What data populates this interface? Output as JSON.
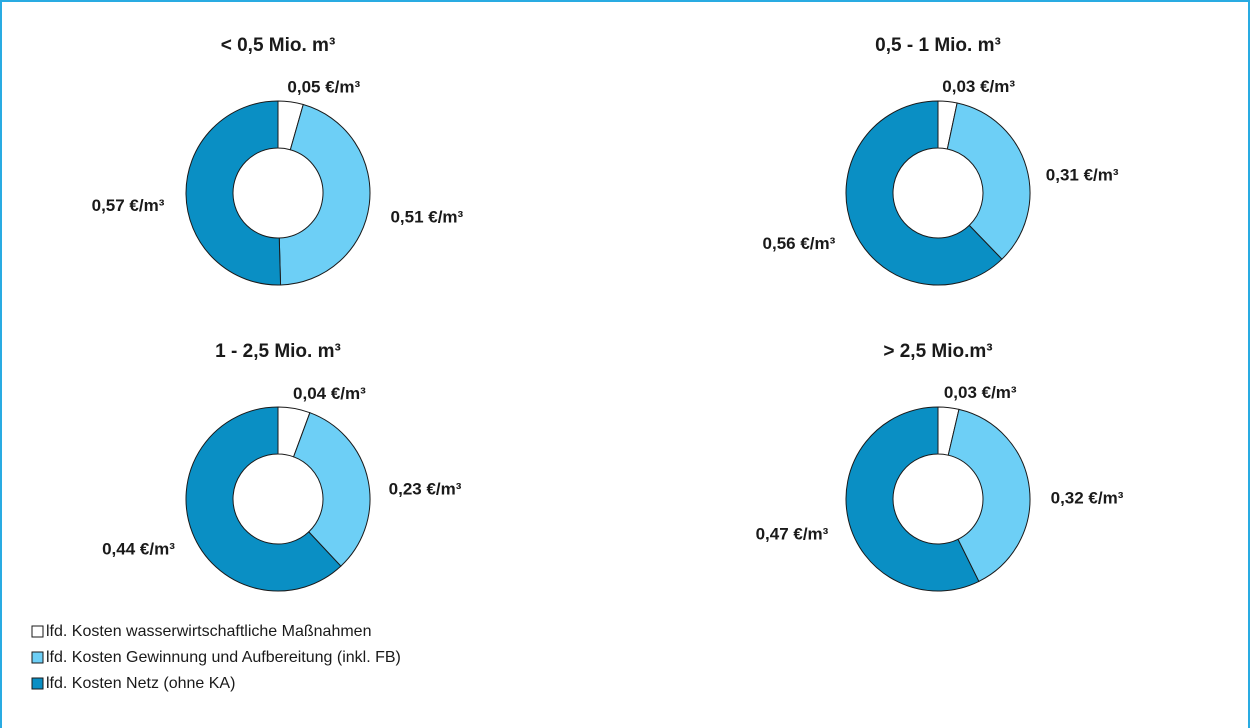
{
  "legend": {
    "labels": [
      "lfd. Kosten wasserwirtschaftliche Maßnahmen",
      "lfd. Kosten Gewinnung und Aufbereitung (inkl. FB)",
      "lfd. Kosten Netz (ohne KA)"
    ],
    "colors": [
      "#ffffff",
      "#6dcff6",
      "#0a8fc4"
    ]
  },
  "chart_data": [
    {
      "type": "pie",
      "title": "< 0,5 Mio. m³",
      "values": [
        0.05,
        0.51,
        0.57
      ],
      "value_labels": [
        "0,05 €/m³",
        "0,51 €/m³",
        "0,57 €/m³"
      ]
    },
    {
      "type": "pie",
      "title": "0,5 - 1 Mio. m³",
      "values": [
        0.03,
        0.31,
        0.56
      ],
      "value_labels": [
        "0,03 €/m³",
        "0,31 €/m³",
        "0,56 €/m³"
      ]
    },
    {
      "type": "pie",
      "title": "1 - 2,5 Mio. m³",
      "values": [
        0.04,
        0.23,
        0.44
      ],
      "value_labels": [
        "0,04 €/m³",
        "0,23 €/m³",
        "0,44 €/m³"
      ]
    },
    {
      "type": "pie",
      "title": "> 2,5 Mio.m³",
      "values": [
        0.03,
        0.32,
        0.47
      ],
      "value_labels": [
        "0,03 €/m³",
        "0,32 €/m³",
        "0,47 €/m³"
      ]
    }
  ]
}
